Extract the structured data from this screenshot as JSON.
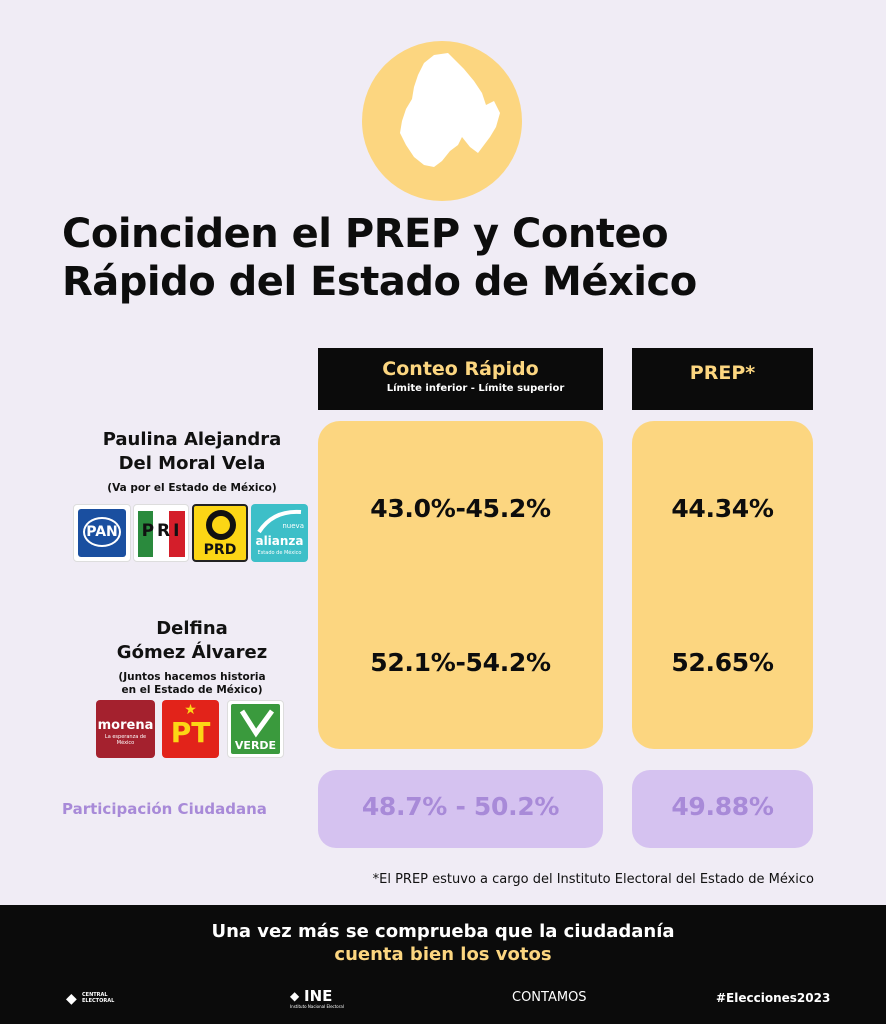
{
  "title": {
    "line1": "Coinciden el PREP y Conteo",
    "line2": "Rápido del Estado de México"
  },
  "headers": {
    "conteo_rapido": "Conteo Rápido",
    "conteo_sub": "Límite inferior - Límite superior",
    "prep": "PREP*"
  },
  "candidates": [
    {
      "name_line1": "Paulina Alejandra",
      "name_line2": "Del Moral Vela",
      "coalition_line1": "(Va por el Estado de México)",
      "coalition_line2": "",
      "conteo": "43.0%-45.2%",
      "prep": "44.34%",
      "parties": [
        "PAN",
        "PRI",
        "PRD",
        "alianza"
      ]
    },
    {
      "name_line1": "Delfina",
      "name_line2": "Gómez Álvarez",
      "coalition_line1": "(Juntos hacemos historia",
      "coalition_line2": "en el Estado de México)",
      "conteo": "52.1%-54.2%",
      "prep": "52.65%",
      "parties": [
        "morena",
        "PT",
        "VERDE"
      ]
    }
  ],
  "party_text": {
    "pan": "PAN",
    "pri": "PRI",
    "prd": "PRD",
    "na_small": "nueva",
    "na_big": "alianza",
    "na_sub": "Estado de México",
    "morena": "morena",
    "morena_sub": "La esperanza de México",
    "pt": "PT",
    "verde": "VERDE"
  },
  "participation": {
    "label": "Participación Ciudadana",
    "conteo": "48.7% - 50.2%",
    "prep": "49.88%"
  },
  "footnote": "*El PREP estuvo a cargo del Instituto Electoral del Estado de México",
  "footer": {
    "line1": "Una vez más se comprueba que la ciudadanía",
    "line2": "cuenta bien los votos",
    "logo_central": "CENTRAL ELECTORAL",
    "logo_ine": "INE",
    "logo_ine_sub": "Instituto Nacional Electoral",
    "logo_contamos": "CONTAMOS",
    "hashtag": "#Elecciones2023"
  },
  "colors": {
    "background": "#f0ecf5",
    "yellow": "#fcd680",
    "purple_box": "#d5c2f0",
    "purple_text": "#a88ad8",
    "black": "#0b0b0b"
  }
}
